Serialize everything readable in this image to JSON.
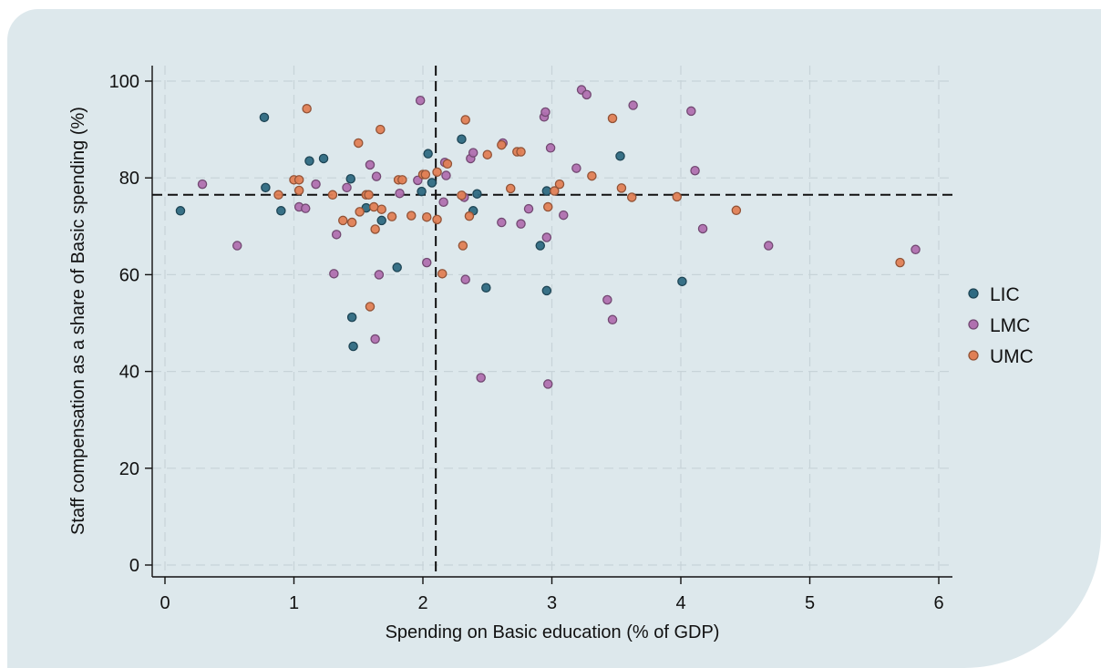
{
  "chart_data": {
    "type": "scatter",
    "xlabel": "Spending on Basic education (% of GDP)",
    "ylabel": "Staff compensation as a share of Basic spending (%)",
    "xlim": [
      -0.1,
      6.1
    ],
    "ylim": [
      -2,
      103
    ],
    "xticks": [
      "0",
      "1",
      "2",
      "3",
      "4",
      "5",
      "6"
    ],
    "yticks": [
      "0",
      "20",
      "40",
      "60",
      "80",
      "100"
    ],
    "grid": true,
    "legend_position": "right",
    "reference_lines": {
      "x": 2.1,
      "y": 76.5,
      "style": "dashed"
    },
    "series": [
      {
        "name": "LIC",
        "color": "#2e6a82",
        "points": [
          [
            0.12,
            73.2
          ],
          [
            0.77,
            92.5
          ],
          [
            0.78,
            78
          ],
          [
            0.9,
            73.2
          ],
          [
            1.12,
            83.5
          ],
          [
            1.23,
            84
          ],
          [
            1.44,
            79.8
          ],
          [
            1.45,
            51.2
          ],
          [
            1.46,
            45.2
          ],
          [
            1.56,
            73.8
          ],
          [
            1.68,
            71.2
          ],
          [
            1.8,
            61.5
          ],
          [
            1.99,
            77.2
          ],
          [
            2.04,
            85
          ],
          [
            2.07,
            79
          ],
          [
            2.3,
            88
          ],
          [
            2.39,
            73.2
          ],
          [
            2.42,
            76.7
          ],
          [
            2.49,
            57.3
          ],
          [
            2.91,
            66
          ],
          [
            2.96,
            56.7
          ],
          [
            2.96,
            77.3
          ],
          [
            3.53,
            84.5
          ],
          [
            4.01,
            58.6
          ]
        ]
      },
      {
        "name": "LMC",
        "color": "#b070b0",
        "points": [
          [
            0.29,
            78.7
          ],
          [
            0.56,
            66
          ],
          [
            1.04,
            74
          ],
          [
            1.09,
            73.7
          ],
          [
            1.17,
            78.7
          ],
          [
            1.31,
            60.2
          ],
          [
            1.33,
            68.3
          ],
          [
            1.41,
            78
          ],
          [
            1.59,
            82.7
          ],
          [
            1.63,
            46.7
          ],
          [
            1.64,
            80.3
          ],
          [
            1.66,
            60
          ],
          [
            1.82,
            76.8
          ],
          [
            1.96,
            79.5
          ],
          [
            1.98,
            96
          ],
          [
            2.03,
            62.5
          ],
          [
            2.16,
            75
          ],
          [
            2.17,
            83.2
          ],
          [
            2.18,
            80.5
          ],
          [
            2.32,
            76
          ],
          [
            2.33,
            59
          ],
          [
            2.37,
            84
          ],
          [
            2.39,
            85.2
          ],
          [
            2.45,
            38.7
          ],
          [
            2.61,
            70.8
          ],
          [
            2.62,
            87.2
          ],
          [
            2.76,
            70.5
          ],
          [
            2.82,
            73.6
          ],
          [
            2.94,
            92.6
          ],
          [
            2.95,
            93.6
          ],
          [
            2.96,
            67.7
          ],
          [
            2.97,
            37.4
          ],
          [
            2.99,
            86.2
          ],
          [
            3.09,
            72.3
          ],
          [
            3.19,
            82
          ],
          [
            3.23,
            98.2
          ],
          [
            3.27,
            97.2
          ],
          [
            3.43,
            54.8
          ],
          [
            3.47,
            50.7
          ],
          [
            3.63,
            95
          ],
          [
            4.08,
            93.8
          ],
          [
            4.11,
            81.5
          ],
          [
            4.17,
            69.5
          ],
          [
            4.68,
            66
          ],
          [
            5.82,
            65.2
          ]
        ]
      },
      {
        "name": "UMC",
        "color": "#e07f55",
        "points": [
          [
            0.88,
            76.5
          ],
          [
            1.0,
            79.6
          ],
          [
            1.04,
            79.6
          ],
          [
            1.04,
            77.4
          ],
          [
            1.1,
            94.3
          ],
          [
            1.3,
            76.5
          ],
          [
            1.38,
            71.2
          ],
          [
            1.45,
            70.8
          ],
          [
            1.5,
            87.2
          ],
          [
            1.51,
            73
          ],
          [
            1.56,
            76.5
          ],
          [
            1.58,
            76.5
          ],
          [
            1.59,
            53.4
          ],
          [
            1.62,
            74
          ],
          [
            1.63,
            69.4
          ],
          [
            1.67,
            90
          ],
          [
            1.68,
            73.5
          ],
          [
            1.76,
            72
          ],
          [
            1.81,
            79.6
          ],
          [
            1.84,
            79.6
          ],
          [
            1.91,
            72.2
          ],
          [
            2.0,
            80.7
          ],
          [
            2.02,
            80.7
          ],
          [
            2.03,
            71.9
          ],
          [
            2.11,
            71.4
          ],
          [
            2.11,
            81.2
          ],
          [
            2.15,
            60.2
          ],
          [
            2.19,
            82.9
          ],
          [
            2.3,
            76.4
          ],
          [
            2.31,
            66
          ],
          [
            2.33,
            92
          ],
          [
            2.36,
            72.1
          ],
          [
            2.5,
            84.8
          ],
          [
            2.61,
            86.8
          ],
          [
            2.68,
            77.8
          ],
          [
            2.73,
            85.4
          ],
          [
            2.76,
            85.4
          ],
          [
            2.97,
            74
          ],
          [
            3.02,
            77.3
          ],
          [
            3.06,
            78.7
          ],
          [
            3.31,
            80.4
          ],
          [
            3.47,
            92.3
          ],
          [
            3.54,
            77.9
          ],
          [
            3.62,
            76
          ],
          [
            3.97,
            76.1
          ],
          [
            4.43,
            73.3
          ],
          [
            5.7,
            62.5
          ]
        ]
      }
    ]
  }
}
